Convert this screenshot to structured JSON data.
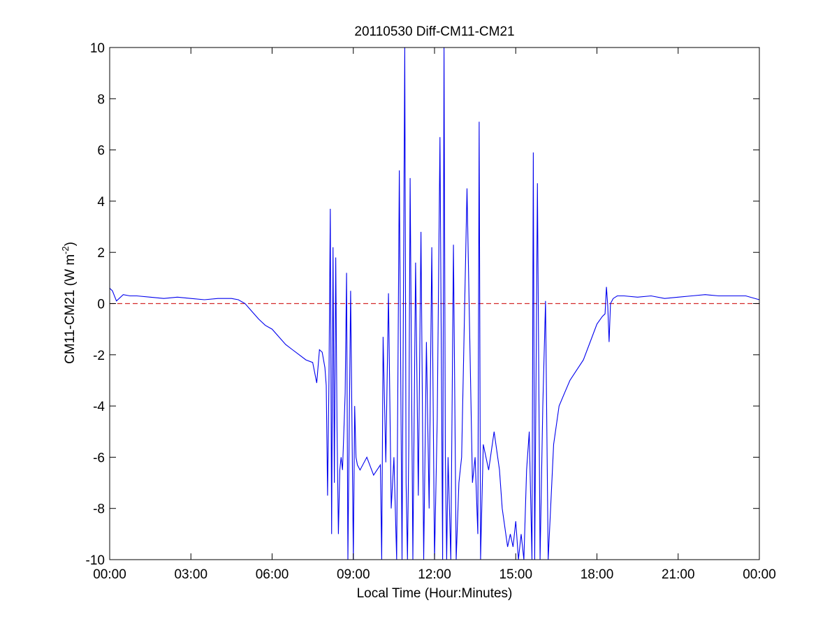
{
  "chart_data": {
    "type": "line",
    "title": "20110530 Diff-CM11-CM21",
    "xlabel": "Local Time (Hour:Minutes)",
    "ylabel": "CM11-CM21 (W m",
    "ylabel_superscript": "-2",
    "ylabel_suffix": ")",
    "xlim": [
      0,
      24
    ],
    "ylim": [
      -10,
      10
    ],
    "grid": false,
    "x_ticks": [
      0,
      3,
      6,
      9,
      12,
      15,
      18,
      21,
      24
    ],
    "x_tick_labels": [
      "00:00",
      "03:00",
      "06:00",
      "09:00",
      "12:00",
      "15:00",
      "18:00",
      "21:00",
      "00:00"
    ],
    "y_ticks": [
      -10,
      -8,
      -6,
      -4,
      -2,
      0,
      2,
      4,
      6,
      8,
      10
    ],
    "y_tick_labels": [
      "-10",
      "-8",
      "-6",
      "-4",
      "-2",
      "0",
      "2",
      "4",
      "6",
      "8",
      "10"
    ],
    "reference_line": {
      "y": 0,
      "color": "#d42a2a",
      "style": "dashed"
    },
    "series": [
      {
        "color": "#0000ee",
        "x": [
          0.0,
          0.1,
          0.25,
          0.5,
          0.75,
          1.0,
          1.5,
          2.0,
          2.5,
          3.0,
          3.5,
          4.0,
          4.5,
          4.75,
          5.0,
          5.25,
          5.5,
          5.75,
          6.0,
          6.25,
          6.5,
          6.75,
          7.0,
          7.25,
          7.5,
          7.65,
          7.75,
          7.85,
          7.95,
          8.0,
          8.05,
          8.1,
          8.15,
          8.2,
          8.25,
          8.3,
          8.35,
          8.4,
          8.45,
          8.5,
          8.55,
          8.6,
          8.7,
          8.75,
          8.8,
          8.9,
          9.0,
          9.05,
          9.1,
          9.15,
          9.25,
          9.5,
          9.75,
          10.0,
          10.05,
          10.1,
          10.2,
          10.3,
          10.4,
          10.5,
          10.6,
          10.7,
          10.8,
          10.9,
          10.95,
          11.0,
          11.05,
          11.1,
          11.2,
          11.3,
          11.4,
          11.5,
          11.6,
          11.7,
          11.8,
          11.9,
          12.0,
          12.1,
          12.2,
          12.3,
          12.35,
          12.4,
          12.45,
          12.5,
          12.6,
          12.7,
          12.8,
          12.9,
          13.0,
          13.2,
          13.4,
          13.5,
          13.6,
          13.65,
          13.7,
          13.8,
          14.0,
          14.2,
          14.4,
          14.5,
          14.7,
          14.8,
          14.9,
          15.0,
          15.1,
          15.2,
          15.3,
          15.4,
          15.5,
          15.6,
          15.65,
          15.7,
          15.8,
          15.9,
          16.0,
          16.1,
          16.2,
          16.4,
          16.6,
          16.8,
          17.0,
          17.25,
          17.5,
          17.75,
          18.0,
          18.2,
          18.3,
          18.35,
          18.4,
          18.45,
          18.5,
          18.6,
          18.75,
          19.0,
          19.5,
          20.0,
          20.5,
          21.0,
          21.5,
          22.0,
          22.5,
          23.0,
          23.5,
          24.0
        ],
        "y": [
          0.6,
          0.5,
          0.1,
          0.35,
          0.3,
          0.3,
          0.25,
          0.2,
          0.25,
          0.2,
          0.15,
          0.2,
          0.2,
          0.15,
          0.0,
          -0.3,
          -0.6,
          -0.85,
          -1.0,
          -1.3,
          -1.6,
          -1.8,
          -2.0,
          -2.2,
          -2.3,
          -3.1,
          -1.8,
          -1.9,
          -2.5,
          -3.2,
          -7.5,
          -3.0,
          3.7,
          -9.0,
          2.2,
          -7.0,
          1.8,
          -5.0,
          -9.0,
          -6.5,
          -6.0,
          -6.5,
          -3.5,
          1.2,
          -10.0,
          0.5,
          -10.0,
          -4.0,
          -6.0,
          -6.3,
          -6.5,
          -6.0,
          -6.7,
          -6.3,
          -10.0,
          -1.3,
          -6.2,
          0.4,
          -8.0,
          -6.0,
          -10.0,
          5.2,
          -10.0,
          10.0,
          -7.0,
          -10.0,
          -5.5,
          4.9,
          -10.0,
          1.6,
          -7.5,
          2.8,
          -10.0,
          -1.5,
          -8.0,
          2.2,
          -10.0,
          -4.5,
          6.5,
          -10.0,
          10.0,
          -6.0,
          -10.0,
          -6.0,
          -10.0,
          2.3,
          -10.0,
          -7.0,
          -6.0,
          4.5,
          -7.0,
          -6.0,
          -9.0,
          7.1,
          -10.0,
          -5.5,
          -6.5,
          -5.0,
          -6.5,
          -8.0,
          -9.5,
          -9.0,
          -9.5,
          -8.5,
          -10.0,
          -9.0,
          -10.0,
          -6.5,
          -5.0,
          -10.0,
          5.9,
          -10.0,
          4.7,
          -10.0,
          -4.0,
          0.1,
          -10.0,
          -5.5,
          -4.0,
          -3.5,
          -3.0,
          -2.6,
          -2.2,
          -1.5,
          -0.8,
          -0.5,
          -0.4,
          0.65,
          -0.1,
          -1.5,
          0.0,
          0.2,
          0.3,
          0.3,
          0.25,
          0.3,
          0.2,
          0.25,
          0.3,
          0.35,
          0.3,
          0.3,
          0.3,
          0.15
        ]
      }
    ]
  }
}
